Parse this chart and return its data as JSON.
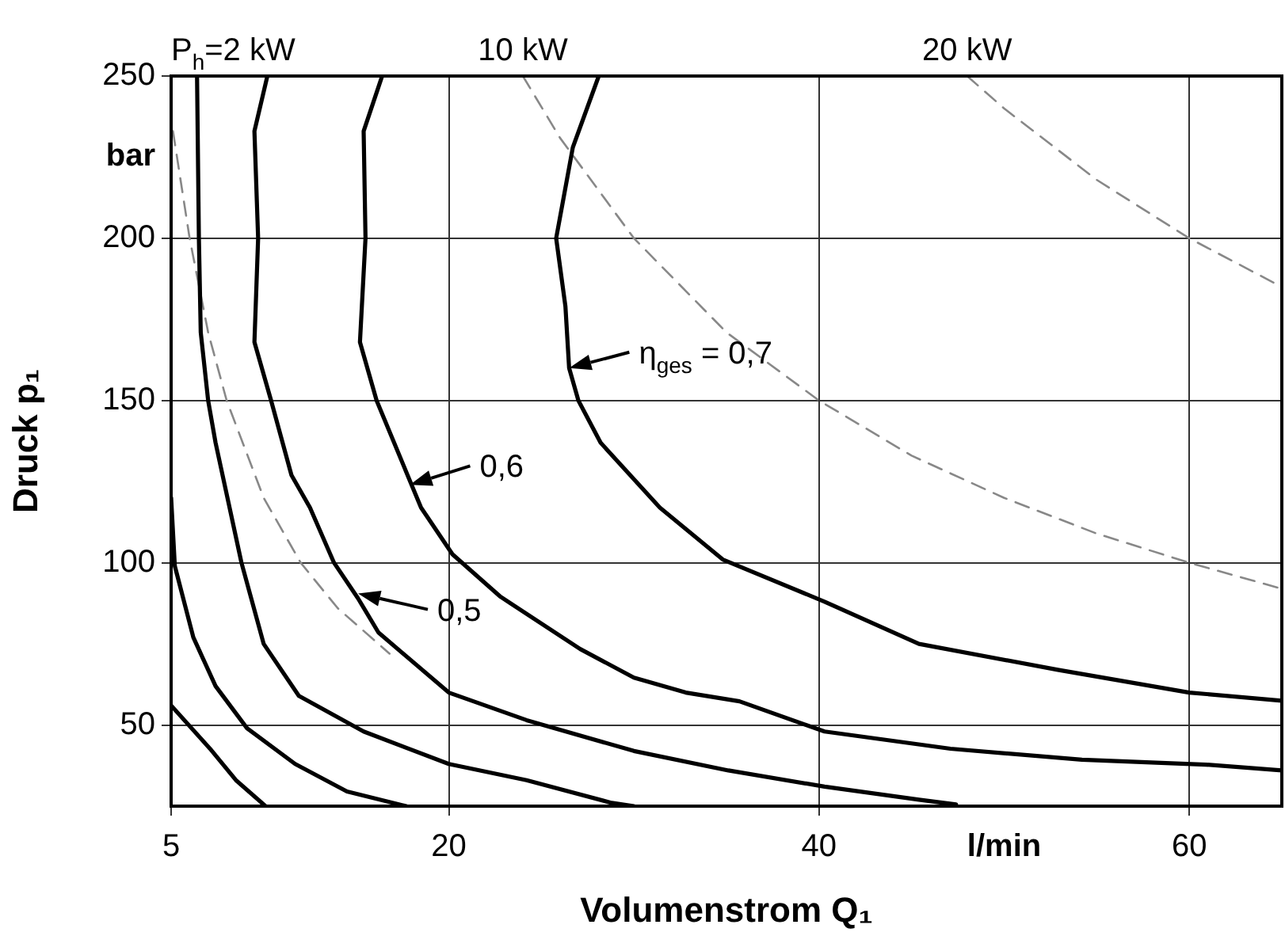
{
  "chart_data": {
    "type": "line",
    "xlabel": "Volumenstrom Q₁",
    "ylabel": "Druck p₁",
    "xlim": [
      5,
      65
    ],
    "ylim": [
      25,
      250
    ],
    "xticks": [
      5,
      20,
      40,
      {
        "value": 50,
        "label": "l/min"
      },
      60
    ],
    "yticks": [
      50,
      100,
      150,
      200,
      {
        "value": 225,
        "label": "bar"
      },
      250
    ],
    "grid": true,
    "legend": false,
    "marker": "none",
    "series": [
      {
        "color": "#000000",
        "line_style": "solid",
        "x": [
          5,
          7.1,
          8.5,
          10.1
        ],
        "values": [
          56,
          42.7,
          33,
          25
        ]
      },
      {
        "color": "#000000",
        "line_style": "solid",
        "x": [
          5,
          5.2,
          6.2,
          7.4,
          9.1,
          11.7,
          14.5,
          17.7
        ],
        "values": [
          120,
          99,
          77,
          62,
          49,
          38,
          29.5,
          25
        ]
      },
      {
        "color": "#000000",
        "line_style": "solid",
        "x": [
          6.4,
          6.5,
          6.6,
          7,
          7.4,
          8.8,
          10,
          11.9,
          15.4,
          20,
          24.2,
          28.8,
          30
        ],
        "values": [
          250,
          200,
          171,
          150,
          137,
          100,
          75,
          59,
          48,
          38,
          33,
          26,
          25
        ]
      },
      {
        "color": "#000000",
        "line_style": "solid",
        "x": [
          10.2,
          9.5,
          9.7,
          9.5,
          10.4,
          11.5,
          12.5,
          13.8,
          15.1,
          16.2,
          20,
          24.2,
          30,
          35.1,
          40.3,
          45.4,
          47.4
        ],
        "values": [
          250,
          233,
          200,
          168,
          150,
          127,
          117,
          100,
          89,
          78.5,
          60,
          51.5,
          42,
          36,
          31,
          27,
          25.5
        ]
      },
      {
        "color": "#000000",
        "line_style": "solid",
        "x": [
          16.4,
          15.4,
          15.5,
          15.2,
          16.1,
          17.7,
          18.5,
          20.2,
          22.8,
          27.1,
          30,
          32.8,
          35.7,
          40.3,
          47.1,
          54.2,
          60.9,
          65
        ],
        "values": [
          250,
          233,
          200,
          168,
          150,
          128,
          117,
          102.6,
          89.5,
          73.4,
          64.6,
          60,
          57.3,
          48,
          42.7,
          39.3,
          37.8,
          36
        ]
      },
      {
        "color": "#000000",
        "line_style": "solid",
        "x": [
          28.1,
          26.7,
          25.8,
          26.3,
          26.5,
          27,
          28.2,
          31.4,
          34.8,
          40.3,
          45.4,
          52.9,
          60,
          65
        ],
        "values": [
          250,
          228,
          200,
          179,
          160,
          150,
          137,
          117,
          101,
          88,
          75,
          67,
          60,
          57.5
        ]
      },
      {
        "name": "P$_{h}$=2 kW",
        "color": "#888888",
        "line_style": "dashed",
        "x": [
          5.1,
          6,
          7,
          8,
          10,
          12,
          14,
          16.8
        ],
        "values": [
          233,
          200,
          171,
          150,
          120,
          100,
          86,
          72
        ]
      },
      {
        "name": "10 kW",
        "color": "#888888",
        "line_style": "dashed",
        "x": [
          24,
          26,
          30,
          35,
          40,
          45,
          50,
          55,
          60,
          65
        ],
        "values": [
          250,
          231,
          200,
          171,
          150,
          133,
          120,
          109,
          100,
          92
        ]
      },
      {
        "name": "20 kW",
        "color": "#888888",
        "line_style": "dashed",
        "x": [
          48,
          50,
          55,
          60,
          65
        ],
        "values": [
          250,
          240,
          218,
          200,
          185
        ]
      }
    ],
    "annotations": [
      {
        "text": "η$_{ges}$ = 0,7",
        "x": 26.5,
        "y": 160
      },
      {
        "text": "0,6",
        "x": 17.9,
        "y": 124
      },
      {
        "text": "0,5",
        "x": 15.1,
        "y": 90.5
      }
    ]
  }
}
